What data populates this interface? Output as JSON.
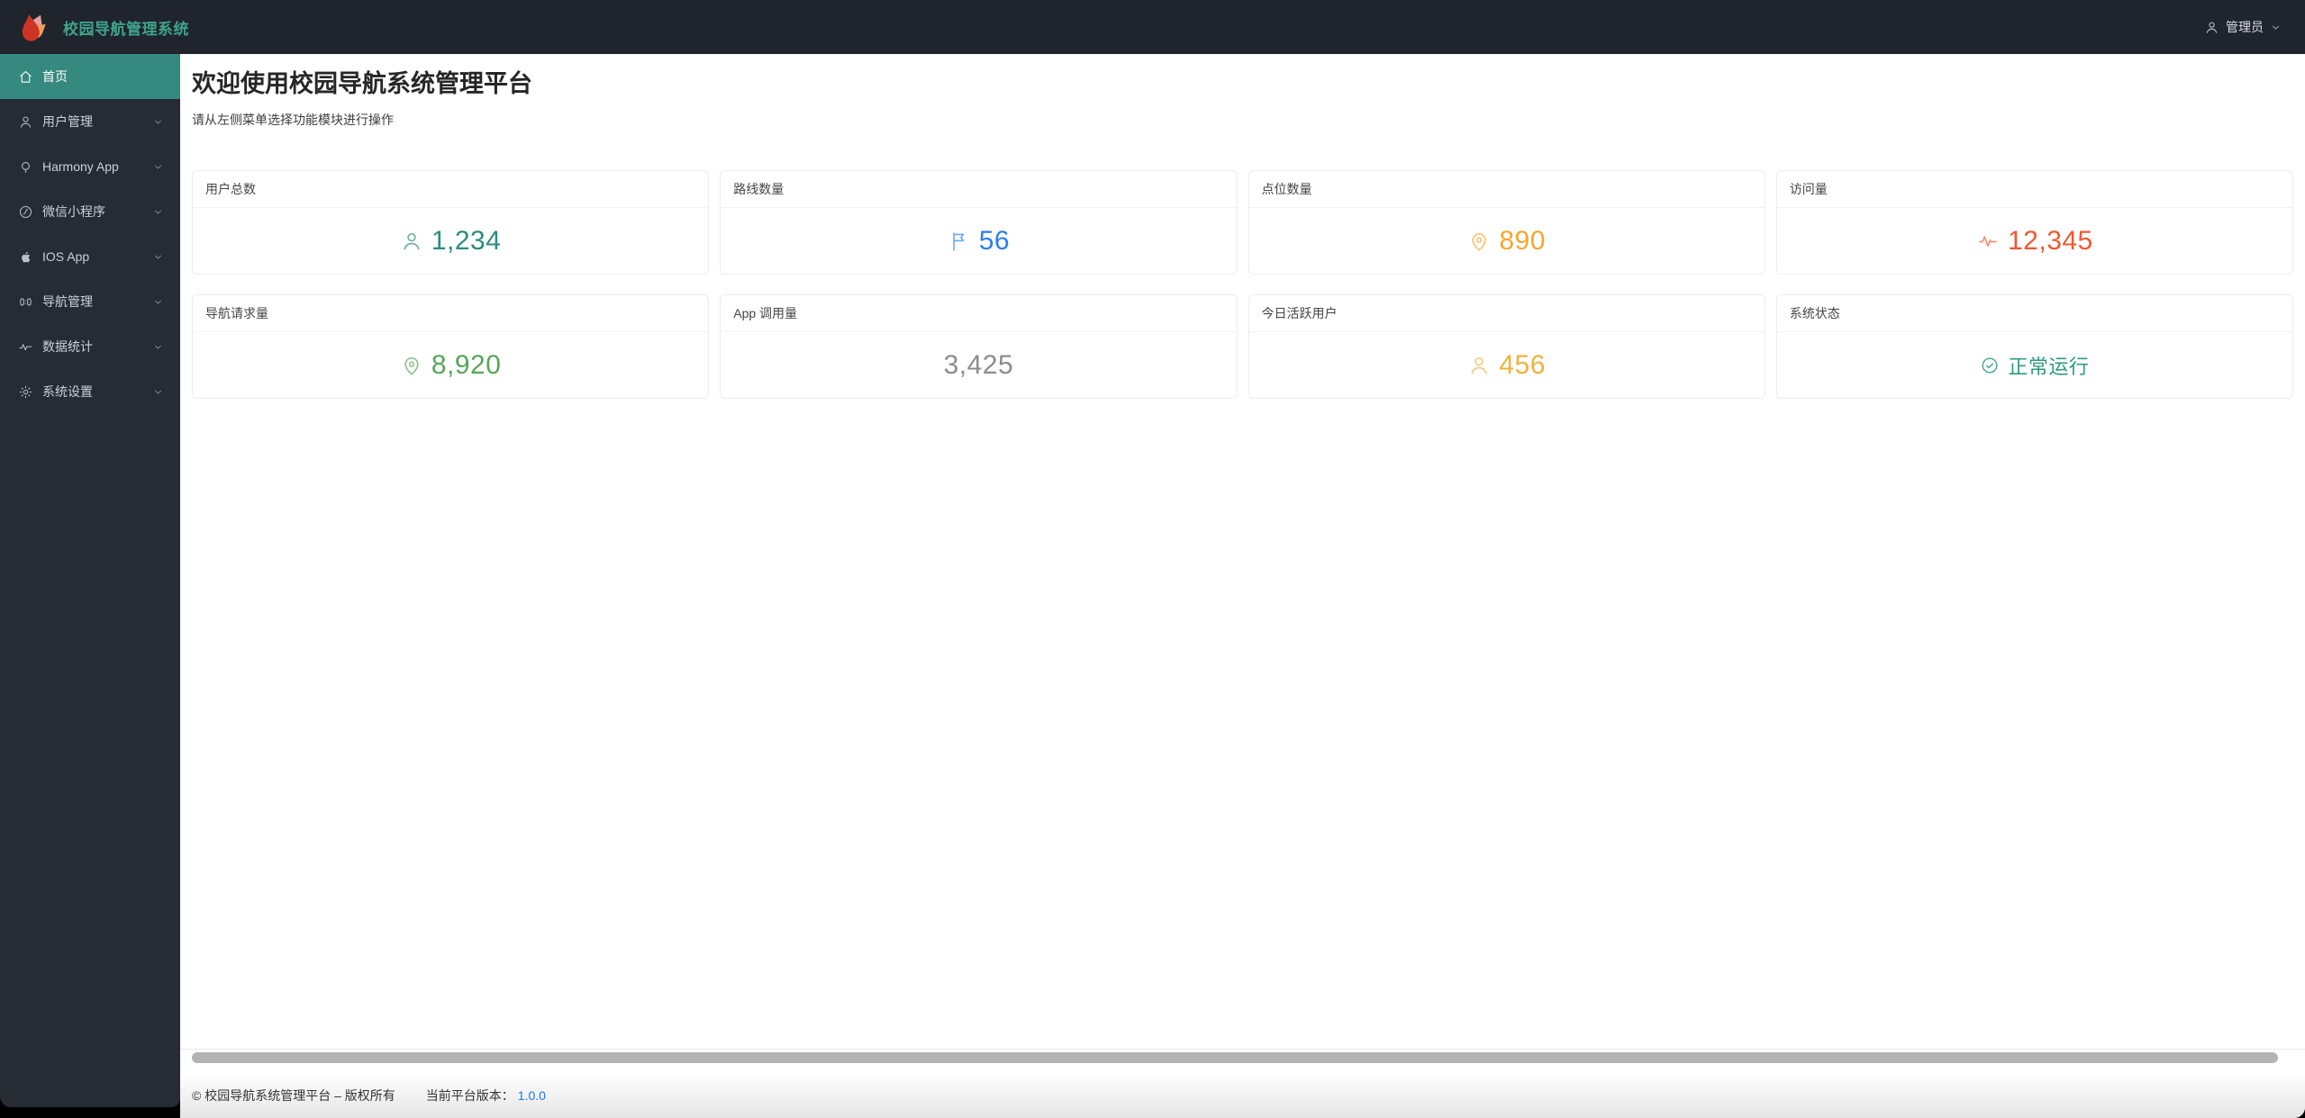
{
  "brand": {
    "title": "校园导航管理系统",
    "logo_icon": "flame-logo-icon",
    "title_color": "#3fa38d"
  },
  "header": {
    "user": {
      "icon": "person-icon",
      "label": "管理员",
      "caret_icon": "chevron-down-icon"
    }
  },
  "sidebar": {
    "active_bg": "#35897e",
    "items": [
      {
        "key": "home",
        "label": "首页",
        "icon": "home-icon",
        "active": true,
        "has_children": false
      },
      {
        "key": "user-management",
        "label": "用户管理",
        "icon": "user-icon",
        "active": false,
        "has_children": true
      },
      {
        "key": "harmony-app",
        "label": "Harmony App",
        "icon": "harmony-icon",
        "active": false,
        "has_children": true
      },
      {
        "key": "wechat-miniprogram",
        "label": "微信小程序",
        "icon": "wechat-miniprogram-icon",
        "active": false,
        "has_children": true
      },
      {
        "key": "ios-app",
        "label": "IOS App",
        "icon": "apple-icon",
        "active": false,
        "has_children": true
      },
      {
        "key": "navigation-management",
        "label": "导航管理",
        "icon": "guide-icon",
        "active": false,
        "has_children": true
      },
      {
        "key": "data-statistics",
        "label": "数据统计",
        "icon": "stats-icon",
        "active": false,
        "has_children": true
      },
      {
        "key": "system-settings",
        "label": "系统设置",
        "icon": "gear-icon",
        "active": false,
        "has_children": true
      }
    ]
  },
  "main": {
    "welcome_title": "欢迎使用校园导航系统管理平台",
    "welcome_subtitle": "请从左侧菜单选择功能模块进行操作",
    "cards": [
      {
        "key": "total-users",
        "label": "用户总数",
        "value": "1,234",
        "icon": "user-icon",
        "color": "#2d8c7c",
        "size": "large"
      },
      {
        "key": "route-count",
        "label": "路线数量",
        "value": "56",
        "icon": "flag-icon",
        "color": "#2b7ef3",
        "size": "large"
      },
      {
        "key": "poi-count",
        "label": "点位数量",
        "value": "890",
        "icon": "location-pin-icon",
        "color": "#f5a72e",
        "size": "large"
      },
      {
        "key": "visits",
        "label": "访问量",
        "value": "12,345",
        "icon": "pulse-icon",
        "color": "#f4572e",
        "size": "large"
      },
      {
        "key": "nav-requests",
        "label": "导航请求量",
        "value": "8,920",
        "icon": "location-pin-icon",
        "color": "#58a55a",
        "size": "large"
      },
      {
        "key": "app-calls",
        "label": "App 调用量",
        "value": "3,425",
        "icon": null,
        "color": "#8c8c8c",
        "size": "large"
      },
      {
        "key": "active-users-today",
        "label": "今日活跃用户",
        "value": "456",
        "icon": "user-icon",
        "color": "#f2b13d",
        "size": "large"
      },
      {
        "key": "system-status",
        "label": "系统状态",
        "value": "正常运行",
        "icon": "check-circle-icon",
        "color": "#2f9a82",
        "size": "medium"
      }
    ]
  },
  "footer": {
    "copyright": "© 校园导航系统管理平台 – 版权所有",
    "version_label": "当前平台版本：",
    "version": "1.0.0",
    "version_color": "#1677ff"
  }
}
